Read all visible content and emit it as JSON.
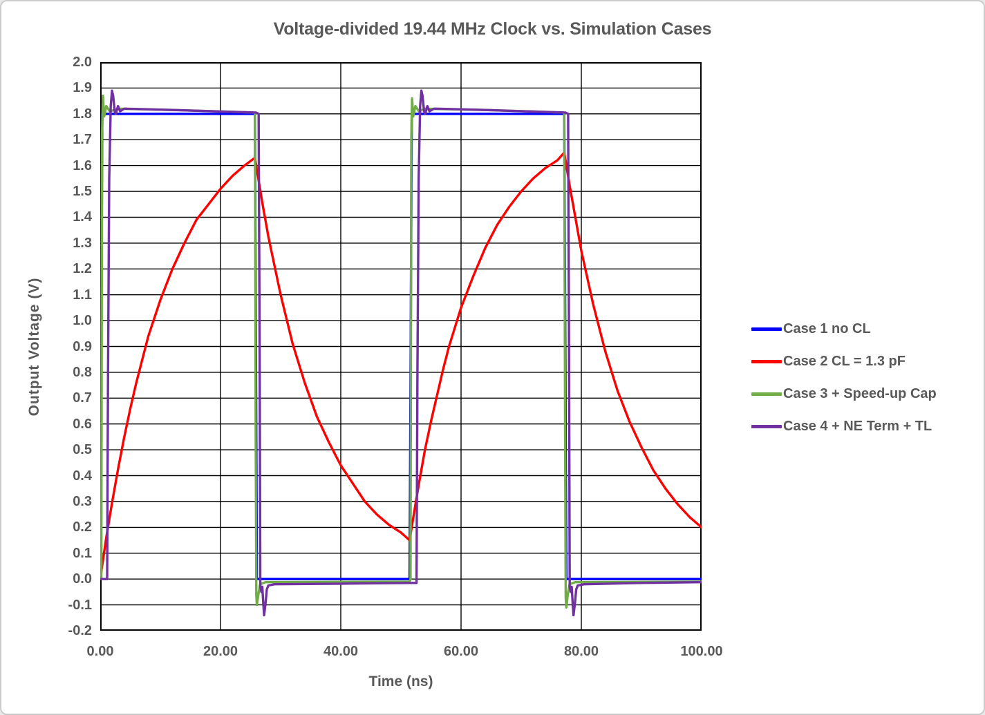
{
  "chart_data": {
    "type": "line",
    "title": "Voltage-divided 19.44 MHz Clock vs. Simulation Cases",
    "xlabel": "Time (ns)",
    "ylabel": "Output Voltage (V)",
    "xlim": [
      0,
      100
    ],
    "ylim": [
      -0.2,
      2.0
    ],
    "grid": true,
    "grid_color": "#000000",
    "text_color": "#595959",
    "legend_position": "right",
    "xtick_values": [
      0,
      20,
      40,
      60,
      80,
      100
    ],
    "xtick_labels": [
      "0.00",
      "20.00",
      "40.00",
      "60.00",
      "80.00",
      "100.00"
    ],
    "ytick_values": [
      2.0,
      1.9,
      1.8,
      1.7,
      1.6,
      1.5,
      1.4,
      1.3,
      1.2,
      1.1,
      1.0,
      0.9,
      0.8,
      0.7,
      0.6,
      0.5,
      0.4,
      0.3,
      0.2,
      0.1,
      0.0,
      -0.1,
      -0.2
    ],
    "ytick_labels": [
      "2.0",
      "1.9",
      "1.8",
      "1.7",
      "1.6",
      "1.5",
      "1.4",
      "1.3",
      "1.2",
      "1.1",
      "1.0",
      "0.9",
      "0.8",
      "0.7",
      "0.6",
      "0.5",
      "0.4",
      "0.3",
      "0.2",
      "0.1",
      "0.0",
      "-0.1",
      "-0.2"
    ],
    "series": [
      {
        "name": "Case 1 no CL",
        "color": "#0000FF",
        "points": [
          [
            0,
            0
          ],
          [
            0.35,
            1.8
          ],
          [
            25.72,
            1.8
          ],
          [
            26.05,
            0
          ],
          [
            51.45,
            0
          ],
          [
            51.8,
            1.8
          ],
          [
            77.16,
            1.8
          ],
          [
            77.5,
            0
          ],
          [
            100,
            0
          ]
        ]
      },
      {
        "name": "Case 2 CL = 1.3 pF",
        "color": "#FF0000",
        "points": [
          [
            0,
            0
          ],
          [
            1,
            0.16
          ],
          [
            2,
            0.3
          ],
          [
            3,
            0.43
          ],
          [
            4,
            0.55
          ],
          [
            5,
            0.66
          ],
          [
            6,
            0.76
          ],
          [
            7,
            0.85
          ],
          [
            8,
            0.94
          ],
          [
            9,
            1.01
          ],
          [
            10,
            1.08
          ],
          [
            12,
            1.2
          ],
          [
            14,
            1.3
          ],
          [
            16,
            1.39
          ],
          [
            18,
            1.45
          ],
          [
            20,
            1.51
          ],
          [
            22,
            1.56
          ],
          [
            24,
            1.6
          ],
          [
            25.72,
            1.63
          ],
          [
            27,
            1.45
          ],
          [
            28,
            1.32
          ],
          [
            30,
            1.1
          ],
          [
            32,
            0.91
          ],
          [
            34,
            0.76
          ],
          [
            36,
            0.63
          ],
          [
            38,
            0.53
          ],
          [
            40,
            0.44
          ],
          [
            42,
            0.37
          ],
          [
            44,
            0.3
          ],
          [
            46,
            0.25
          ],
          [
            48,
            0.21
          ],
          [
            50,
            0.18
          ],
          [
            51.45,
            0.15
          ],
          [
            52,
            0.23
          ],
          [
            53,
            0.37
          ],
          [
            54,
            0.5
          ],
          [
            55,
            0.61
          ],
          [
            56,
            0.71
          ],
          [
            57,
            0.81
          ],
          [
            58,
            0.9
          ],
          [
            60,
            1.05
          ],
          [
            62,
            1.17
          ],
          [
            64,
            1.28
          ],
          [
            66,
            1.37
          ],
          [
            68,
            1.44
          ],
          [
            70,
            1.5
          ],
          [
            72,
            1.55
          ],
          [
            74,
            1.59
          ],
          [
            76,
            1.62
          ],
          [
            77.16,
            1.65
          ],
          [
            78,
            1.53
          ],
          [
            80,
            1.27
          ],
          [
            82,
            1.06
          ],
          [
            84,
            0.88
          ],
          [
            86,
            0.73
          ],
          [
            88,
            0.61
          ],
          [
            90,
            0.51
          ],
          [
            92,
            0.42
          ],
          [
            94,
            0.35
          ],
          [
            96,
            0.29
          ],
          [
            98,
            0.24
          ],
          [
            100,
            0.2
          ]
        ]
      },
      {
        "name": "Case 3 + Speed-up Cap",
        "color": "#70AD47",
        "points": [
          [
            0,
            0
          ],
          [
            0.18,
            0
          ],
          [
            0.3,
            1.72
          ],
          [
            0.45,
            1.87
          ],
          [
            0.65,
            1.79
          ],
          [
            1.0,
            1.83
          ],
          [
            1.6,
            1.81
          ],
          [
            3,
            1.82
          ],
          [
            12,
            1.815
          ],
          [
            25.6,
            1.805
          ],
          [
            25.72,
            1.8
          ],
          [
            25.85,
            0.6
          ],
          [
            25.95,
            -0.06
          ],
          [
            26.05,
            -0.1
          ],
          [
            26.3,
            -0.06
          ],
          [
            26.6,
            -0.02
          ],
          [
            27.5,
            -0.012
          ],
          [
            51.45,
            -0.01
          ],
          [
            51.6,
            0
          ],
          [
            51.72,
            1.7
          ],
          [
            51.85,
            1.86
          ],
          [
            52.05,
            1.79
          ],
          [
            52.4,
            1.83
          ],
          [
            53,
            1.81
          ],
          [
            54,
            1.82
          ],
          [
            64,
            1.815
          ],
          [
            77.0,
            1.805
          ],
          [
            77.16,
            1.8
          ],
          [
            77.3,
            0.6
          ],
          [
            77.4,
            -0.07
          ],
          [
            77.5,
            -0.11
          ],
          [
            77.75,
            -0.06
          ],
          [
            78.05,
            -0.02
          ],
          [
            79,
            -0.012
          ],
          [
            100,
            -0.01
          ]
        ]
      },
      {
        "name": "Case 4 + NE Term + TL",
        "color": "#7030A0",
        "points": [
          [
            0,
            0
          ],
          [
            1.15,
            0
          ],
          [
            1.3,
            0.8
          ],
          [
            1.5,
            1.55
          ],
          [
            1.75,
            1.83
          ],
          [
            1.95,
            1.89
          ],
          [
            2.15,
            1.87
          ],
          [
            2.4,
            1.81
          ],
          [
            2.6,
            1.8
          ],
          [
            2.95,
            1.83
          ],
          [
            3.3,
            1.81
          ],
          [
            4,
            1.82
          ],
          [
            12,
            1.815
          ],
          [
            25.9,
            1.805
          ],
          [
            26.35,
            1.8
          ],
          [
            26.5,
            0.9
          ],
          [
            26.62,
            -0.03
          ],
          [
            26.8,
            -0.05
          ],
          [
            26.95,
            -0.03
          ],
          [
            27.1,
            -0.09
          ],
          [
            27.25,
            -0.14
          ],
          [
            27.5,
            -0.09
          ],
          [
            27.7,
            -0.04
          ],
          [
            27.95,
            -0.025
          ],
          [
            29,
            -0.02
          ],
          [
            40,
            -0.018
          ],
          [
            51.45,
            -0.015
          ],
          [
            52.6,
            -0.015
          ],
          [
            52.75,
            0.8
          ],
          [
            52.95,
            1.55
          ],
          [
            53.2,
            1.83
          ],
          [
            53.4,
            1.89
          ],
          [
            53.6,
            1.87
          ],
          [
            53.85,
            1.81
          ],
          [
            54.05,
            1.8
          ],
          [
            54.4,
            1.83
          ],
          [
            54.75,
            1.81
          ],
          [
            55.5,
            1.82
          ],
          [
            64,
            1.815
          ],
          [
            77.35,
            1.805
          ],
          [
            77.8,
            1.8
          ],
          [
            77.95,
            0.9
          ],
          [
            78.07,
            -0.03
          ],
          [
            78.25,
            -0.05
          ],
          [
            78.4,
            -0.03
          ],
          [
            78.55,
            -0.09
          ],
          [
            78.7,
            -0.14
          ],
          [
            78.95,
            -0.09
          ],
          [
            79.15,
            -0.04
          ],
          [
            79.4,
            -0.025
          ],
          [
            80.5,
            -0.02
          ],
          [
            90,
            -0.015
          ],
          [
            100,
            -0.012
          ]
        ]
      }
    ]
  }
}
